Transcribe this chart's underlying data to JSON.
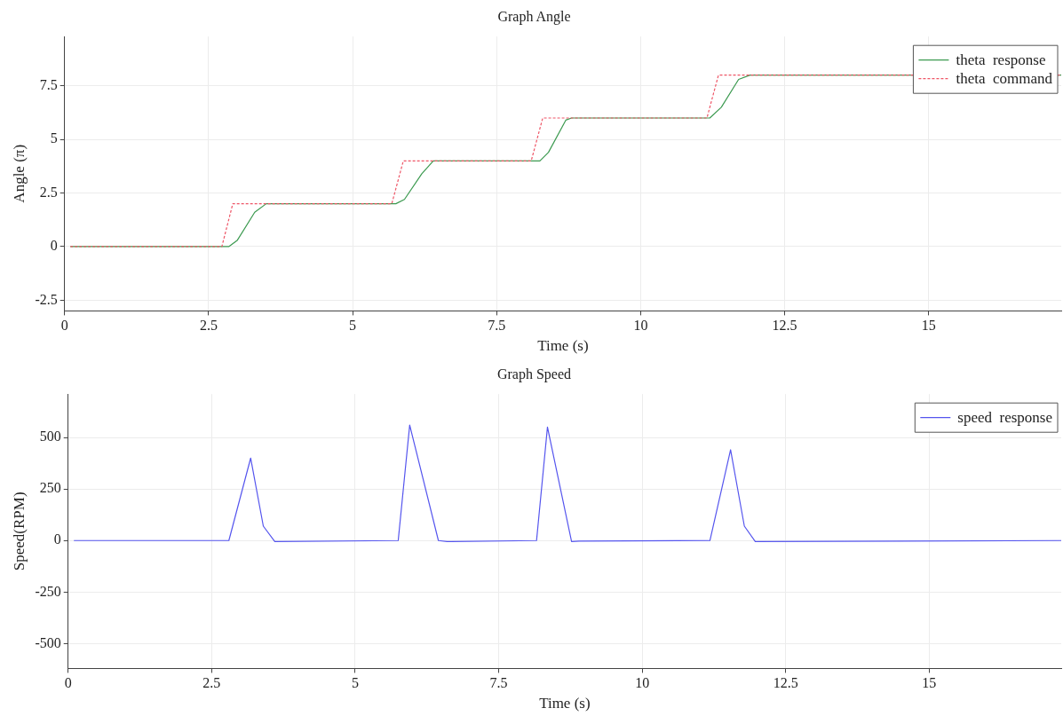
{
  "chart_data": [
    {
      "type": "line",
      "title": "Graph Angle",
      "xlabel": "Time (s)",
      "ylabel": "Angle (π)",
      "xlim": [
        0,
        17.3
      ],
      "xticks": [
        0,
        2.5,
        5,
        7.5,
        10,
        12.5,
        15
      ],
      "ylim": [
        -3,
        9.8
      ],
      "yticks": [
        -2.5,
        0,
        2.5,
        5,
        7.5
      ],
      "grid": true,
      "legend": "top right",
      "marker": "none",
      "series": [
        {
          "name": "theta  response",
          "color": "#3c9a50",
          "line_style": "solid",
          "x": [
            0.1,
            2.85,
            3.0,
            3.3,
            3.5,
            5.75,
            5.9,
            6.2,
            6.4,
            8.25,
            8.4,
            8.7,
            8.8,
            11.2,
            11.4,
            11.7,
            11.9,
            17.3
          ],
          "values": [
            0,
            0,
            0.3,
            1.6,
            2,
            2,
            2.2,
            3.4,
            4,
            4,
            4.4,
            5.9,
            6,
            6,
            6.5,
            7.8,
            8,
            8
          ]
        },
        {
          "name": "theta  command",
          "color": "#ee5566",
          "line_style": "dashed",
          "x": [
            0.1,
            2.73,
            2.92,
            5.68,
            5.88,
            8.1,
            8.3,
            11.15,
            11.35,
            17.3
          ],
          "values": [
            0,
            0,
            2,
            2,
            4,
            4,
            6,
            6,
            8,
            8
          ]
        }
      ]
    },
    {
      "type": "line",
      "title": "Graph Speed",
      "xlabel": "Time (s)",
      "ylabel": "Speed(RPM)",
      "xlim": [
        0,
        17.3
      ],
      "xticks": [
        0,
        2.5,
        5,
        7.5,
        10,
        12.5,
        15
      ],
      "ylim": [
        -620,
        710
      ],
      "yticks": [
        -500,
        -250,
        0,
        250,
        500
      ],
      "grid": true,
      "legend": "top right",
      "marker": "none",
      "series": [
        {
          "name": "speed  response",
          "color": "#5555ee",
          "line_style": "solid",
          "x": [
            0.1,
            2.8,
            3.18,
            3.4,
            3.6,
            5.75,
            5.95,
            6.45,
            6.6,
            8.16,
            8.35,
            8.77,
            8.9,
            11.18,
            11.54,
            11.78,
            11.97,
            17.3
          ],
          "values": [
            0,
            0,
            400,
            70,
            -5,
            0,
            560,
            0,
            -5,
            0,
            550,
            -5,
            -3,
            0,
            440,
            70,
            -5,
            0
          ]
        }
      ]
    }
  ]
}
